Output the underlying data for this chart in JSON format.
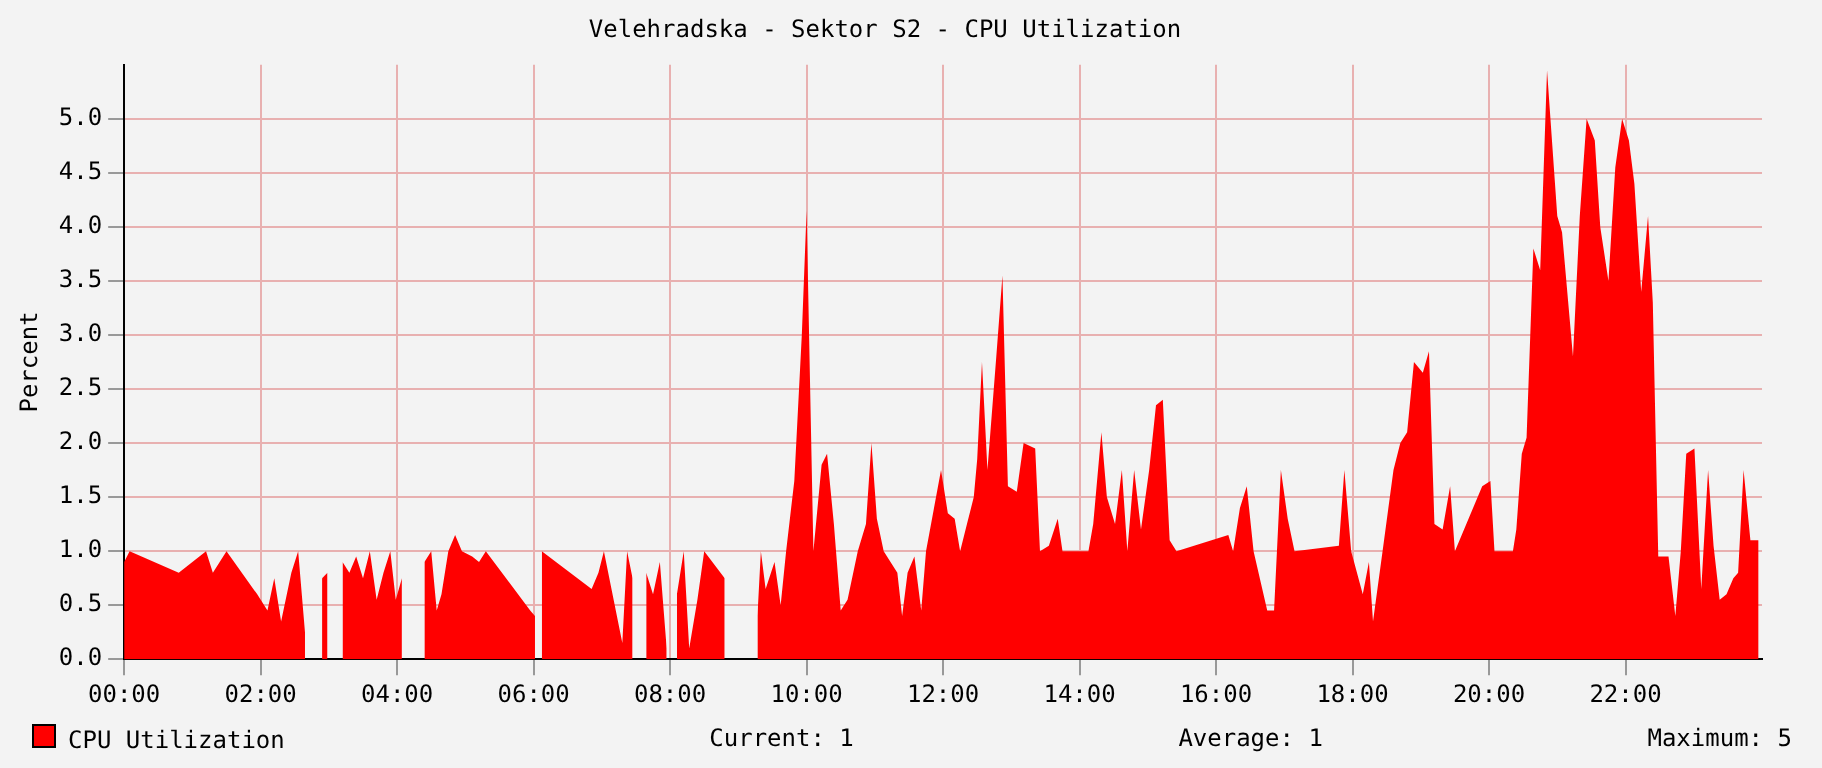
{
  "chart_data": {
    "type": "area",
    "title": "Velehradska - Sektor S2 - CPU Utilization",
    "ylabel": "Percent",
    "xlim": [
      0,
      24
    ],
    "xticks": [
      {
        "value": 0,
        "label": "00:00"
      },
      {
        "value": 2,
        "label": "02:00"
      },
      {
        "value": 4,
        "label": "04:00"
      },
      {
        "value": 6,
        "label": "06:00"
      },
      {
        "value": 8,
        "label": "08:00"
      },
      {
        "value": 10,
        "label": "10:00"
      },
      {
        "value": 12,
        "label": "12:00"
      },
      {
        "value": 14,
        "label": "14:00"
      },
      {
        "value": 16,
        "label": "16:00"
      },
      {
        "value": 18,
        "label": "18:00"
      },
      {
        "value": 20,
        "label": "20:00"
      },
      {
        "value": 22,
        "label": "22:00"
      }
    ],
    "ylim": [
      0,
      5.5
    ],
    "yticks": [
      {
        "value": 0,
        "label": "0.0"
      },
      {
        "value": 0.5,
        "label": "0.5"
      },
      {
        "value": 1,
        "label": "1.0"
      },
      {
        "value": 1.5,
        "label": "1.5"
      },
      {
        "value": 2,
        "label": "2.0"
      },
      {
        "value": 2.5,
        "label": "2.5"
      },
      {
        "value": 3,
        "label": "3.0"
      },
      {
        "value": 3.5,
        "label": "3.5"
      },
      {
        "value": 4,
        "label": "4.0"
      },
      {
        "value": 4.5,
        "label": "4.5"
      },
      {
        "value": 5,
        "label": "5.0"
      }
    ],
    "grid": true,
    "legend": "bottom left",
    "annotations": [
      "Current: 1",
      "Average: 1",
      "Maximum: 5"
    ],
    "series": [
      {
        "name": "CPU Utilization",
        "color": "#ff0000",
        "x": [
          0,
          0.08,
          0.8,
          1.2,
          1.3,
          1.4,
          1.5,
          1.95,
          2.1,
          2.2,
          2.3,
          2.45,
          2.55,
          2.65,
          2.72,
          2.9,
          2.98,
          3.02,
          3.2,
          3.3,
          3.4,
          3.5,
          3.6,
          3.7,
          3.8,
          3.9,
          3.98,
          4.07,
          4.15,
          4.4,
          4.5,
          4.58,
          4.65,
          4.75,
          4.85,
          4.95,
          5.1,
          5.2,
          5.3,
          5.95,
          6.02,
          6.07,
          6.12,
          6.85,
          6.95,
          7.03,
          7.3,
          7.37,
          7.45,
          7.55,
          7.65,
          7.75,
          7.85,
          7.95,
          8.02,
          8.1,
          8.2,
          8.28,
          8.4,
          8.5,
          8.8,
          9.0,
          9.28,
          9.33,
          9.4,
          9.53,
          9.62,
          9.7,
          9.82,
          9.93,
          10.0,
          10.1,
          10.22,
          10.3,
          10.4,
          10.5,
          10.6,
          10.75,
          10.87,
          10.95,
          11.03,
          11.13,
          11.33,
          11.4,
          11.48,
          11.58,
          11.68,
          11.75,
          11.97,
          12.07,
          12.17,
          12.25,
          12.35,
          12.45,
          12.5,
          12.57,
          12.65,
          12.78,
          12.87,
          12.95,
          13.08,
          13.18,
          13.35,
          13.42,
          13.55,
          13.68,
          13.75,
          14.13,
          14.2,
          14.32,
          14.4,
          14.52,
          14.62,
          14.7,
          14.8,
          14.9,
          15.02,
          15.12,
          15.22,
          15.32,
          15.42,
          16.18,
          16.25,
          16.35,
          16.45,
          16.55,
          16.75,
          16.85,
          16.95,
          17.05,
          17.15,
          17.8,
          17.88,
          17.98,
          18.15,
          18.24,
          18.3,
          18.44,
          18.6,
          18.7,
          18.8,
          18.9,
          19.03,
          19.12,
          19.2,
          19.32,
          19.43,
          19.5,
          19.9,
          20.02,
          20.08,
          20.35,
          20.4,
          20.48,
          20.55,
          20.65,
          20.75,
          20.85,
          21.0,
          21.07,
          21.23,
          21.33,
          21.43,
          21.55,
          21.63,
          21.75,
          21.85,
          21.95,
          22.05,
          22.13,
          22.23,
          22.33,
          22.4,
          22.48,
          22.63,
          22.73,
          22.81,
          22.89,
          23.01,
          23.11,
          23.21,
          23.29,
          23.38,
          23.48,
          23.58,
          23.65,
          23.73,
          23.83,
          23.95
        ],
        "values": [
          0.9,
          1.0,
          0.8,
          1.0,
          0.8,
          0.9,
          1.0,
          0.6,
          0.45,
          0.75,
          0.35,
          0.8,
          1.0,
          0.25,
          null,
          0.75,
          0.8,
          null,
          0.9,
          0.8,
          0.95,
          0.75,
          1.0,
          0.55,
          0.8,
          1.0,
          0.55,
          0.75,
          null,
          0.9,
          1.0,
          0.45,
          0.6,
          1.0,
          1.15,
          1.0,
          0.95,
          0.9,
          1.0,
          0.45,
          0.4,
          null,
          1.0,
          0.65,
          0.8,
          1.0,
          0.15,
          1.0,
          0.75,
          null,
          0.8,
          0.6,
          0.9,
          0.1,
          null,
          0.6,
          1.0,
          0.1,
          0.55,
          1.0,
          0.75,
          null,
          0.4,
          1.0,
          0.65,
          0.9,
          0.5,
          1.0,
          1.65,
          3.0,
          4.15,
          1.0,
          1.8,
          1.9,
          1.25,
          0.45,
          0.55,
          1.0,
          1.25,
          2.0,
          1.3,
          1.0,
          0.8,
          0.4,
          0.8,
          0.95,
          0.45,
          1.0,
          1.75,
          1.35,
          1.3,
          1.0,
          1.25,
          1.5,
          1.85,
          2.75,
          1.75,
          2.8,
          3.55,
          1.6,
          1.55,
          2.0,
          1.95,
          1.0,
          1.05,
          1.3,
          1.0,
          1.0,
          1.25,
          2.1,
          1.5,
          1.25,
          1.75,
          1.0,
          1.75,
          1.2,
          1.75,
          2.35,
          2.4,
          1.1,
          1.0,
          1.15,
          1.0,
          1.4,
          1.6,
          1.0,
          0.45,
          0.45,
          1.75,
          1.3,
          1.0,
          1.05,
          1.75,
          1.0,
          0.6,
          0.9,
          0.35,
          1.0,
          1.75,
          2.0,
          2.1,
          2.75,
          2.65,
          2.85,
          1.25,
          1.2,
          1.6,
          1.0,
          1.6,
          1.65,
          1.0,
          1.0,
          1.2,
          1.9,
          2.05,
          3.8,
          3.6,
          5.45,
          4.1,
          3.95,
          2.8,
          4.1,
          5.0,
          4.8,
          4.0,
          3.5,
          4.55,
          5.0,
          4.8,
          4.4,
          3.4,
          4.1,
          3.3,
          0.95,
          0.95,
          0.4,
          1.0,
          1.9,
          1.95,
          0.65,
          1.75,
          1.05,
          0.55,
          0.6,
          0.75,
          0.8,
          1.75,
          1.1,
          1.1
        ]
      }
    ]
  }
}
